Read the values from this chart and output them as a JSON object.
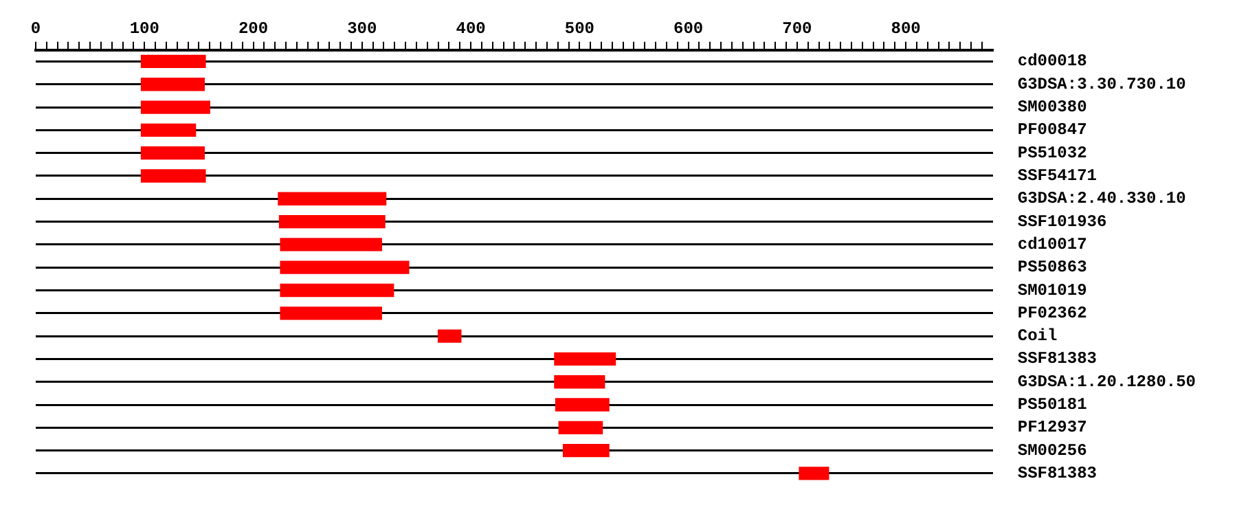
{
  "chart_data": {
    "type": "bar",
    "orientation": "horizontal",
    "color": "#ff0000",
    "grid": "y",
    "categories": [
      "cd00018",
      "G3DSA:3.30.730.10",
      "SM00380",
      "PF00847",
      "PS51032",
      "SSF54171",
      "G3DSA:2.40.330.10",
      "SSF101936",
      "cd10017",
      "PS50863",
      "SM01019",
      "PF02362",
      "Coil",
      "SSF81383",
      "G3DSA:1.20.1280.50",
      "PS50181",
      "PF12937",
      "SM00256",
      "SSF81383"
    ],
    "base": [
      97,
      97,
      97,
      97,
      97,
      97,
      223,
      224,
      225,
      225,
      225,
      225,
      370,
      477,
      477,
      478,
      481,
      485,
      702
    ],
    "values": [
      59,
      58,
      63,
      50,
      58,
      59,
      99,
      97,
      93,
      118,
      104,
      93,
      21,
      56,
      46,
      49,
      40,
      42,
      27
    ],
    "xlim": [
      0,
      880
    ],
    "xticks": [
      0,
      {
        "value": 10,
        "label": null
      },
      {
        "value": 20,
        "label": null
      },
      {
        "value": 30,
        "label": null
      },
      {
        "value": 40,
        "label": null
      },
      {
        "value": 50,
        "label": null
      },
      {
        "value": 60,
        "label": null
      },
      {
        "value": 70,
        "label": null
      },
      {
        "value": 80,
        "label": null
      },
      {
        "value": 90,
        "label": null
      },
      100,
      {
        "value": 110,
        "label": null
      },
      {
        "value": 120,
        "label": null
      },
      {
        "value": 130,
        "label": null
      },
      {
        "value": 140,
        "label": null
      },
      {
        "value": 150,
        "label": null
      },
      {
        "value": 160,
        "label": null
      },
      {
        "value": 170,
        "label": null
      },
      {
        "value": 180,
        "label": null
      },
      {
        "value": 190,
        "label": null
      },
      200,
      {
        "value": 210,
        "label": null
      },
      {
        "value": 220,
        "label": null
      },
      {
        "value": 230,
        "label": null
      },
      {
        "value": 240,
        "label": null
      },
      {
        "value": 250,
        "label": null
      },
      {
        "value": 260,
        "label": null
      },
      {
        "value": 270,
        "label": null
      },
      {
        "value": 280,
        "label": null
      },
      {
        "value": 290,
        "label": null
      },
      300,
      {
        "value": 310,
        "label": null
      },
      {
        "value": 320,
        "label": null
      },
      {
        "value": 330,
        "label": null
      },
      {
        "value": 340,
        "label": null
      },
      {
        "value": 350,
        "label": null
      },
      {
        "value": 360,
        "label": null
      },
      {
        "value": 370,
        "label": null
      },
      {
        "value": 380,
        "label": null
      },
      {
        "value": 390,
        "label": null
      },
      400,
      {
        "value": 410,
        "label": null
      },
      {
        "value": 420,
        "label": null
      },
      {
        "value": 430,
        "label": null
      },
      {
        "value": 440,
        "label": null
      },
      {
        "value": 450,
        "label": null
      },
      {
        "value": 460,
        "label": null
      },
      {
        "value": 470,
        "label": null
      },
      {
        "value": 480,
        "label": null
      },
      {
        "value": 490,
        "label": null
      },
      500,
      {
        "value": 510,
        "label": null
      },
      {
        "value": 520,
        "label": null
      },
      {
        "value": 530,
        "label": null
      },
      {
        "value": 540,
        "label": null
      },
      {
        "value": 550,
        "label": null
      },
      {
        "value": 560,
        "label": null
      },
      {
        "value": 570,
        "label": null
      },
      {
        "value": 580,
        "label": null
      },
      {
        "value": 590,
        "label": null
      },
      600,
      {
        "value": 610,
        "label": null
      },
      {
        "value": 620,
        "label": null
      },
      {
        "value": 630,
        "label": null
      },
      {
        "value": 640,
        "label": null
      },
      {
        "value": 650,
        "label": null
      },
      {
        "value": 660,
        "label": null
      },
      {
        "value": 670,
        "label": null
      },
      {
        "value": 680,
        "label": null
      },
      {
        "value": 690,
        "label": null
      },
      700,
      {
        "value": 710,
        "label": null
      },
      {
        "value": 720,
        "label": null
      },
      {
        "value": 730,
        "label": null
      },
      {
        "value": 740,
        "label": null
      },
      {
        "value": 750,
        "label": null
      },
      {
        "value": 760,
        "label": null
      },
      {
        "value": 770,
        "label": null
      },
      {
        "value": 780,
        "label": null
      },
      {
        "value": 790,
        "label": null
      },
      800,
      {
        "value": 810,
        "label": null
      },
      {
        "value": 820,
        "label": null
      },
      {
        "value": 830,
        "label": null
      },
      {
        "value": 840,
        "label": null
      },
      {
        "value": 850,
        "label": null
      },
      {
        "value": 860,
        "label": null
      },
      {
        "value": 870,
        "label": null
      }
    ]
  }
}
